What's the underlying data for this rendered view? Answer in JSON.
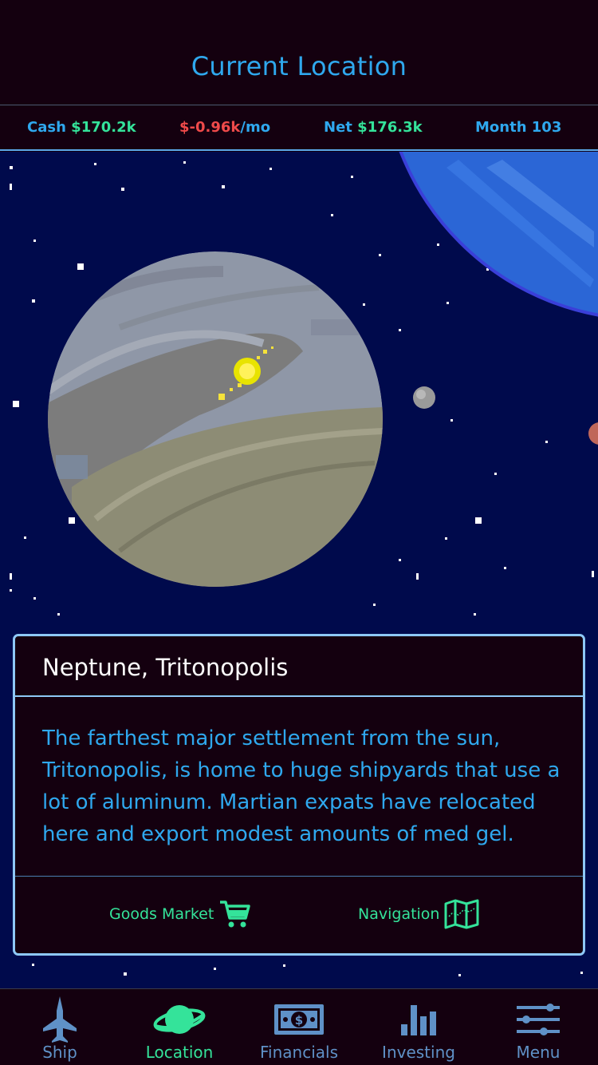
{
  "header": {
    "title": "Current Location"
  },
  "stats": {
    "cash_label": "Cash",
    "cash_value": "$170.2k",
    "burn_value": "$-0.96k",
    "burn_unit": "/mo",
    "net_label": "Net",
    "net_value": "$176.3k",
    "month_label": "Month 103"
  },
  "card": {
    "title": "Neptune, Tritonopolis",
    "description": "The farthest major settlement from the sun, Tritonopolis, is home to huge shipyards that use a lot of aluminum. Martian expats have relocated here and export modest amounts of med gel.",
    "goods_market_label": "Goods Market",
    "navigation_label": "Navigation"
  },
  "tabs": [
    {
      "label": "Ship",
      "icon": "ship-icon"
    },
    {
      "label": "Location",
      "icon": "planet-icon"
    },
    {
      "label": "Financials",
      "icon": "money-icon"
    },
    {
      "label": "Investing",
      "icon": "bar-chart-icon"
    },
    {
      "label": "Menu",
      "icon": "sliders-icon"
    }
  ],
  "colors": {
    "accent_blue": "#2fa8ee",
    "accent_green": "#34e39a",
    "negative_red": "#ef4a4a",
    "background": "#14000f",
    "space": "#000a4c",
    "tab_inactive": "#5f91c7"
  }
}
